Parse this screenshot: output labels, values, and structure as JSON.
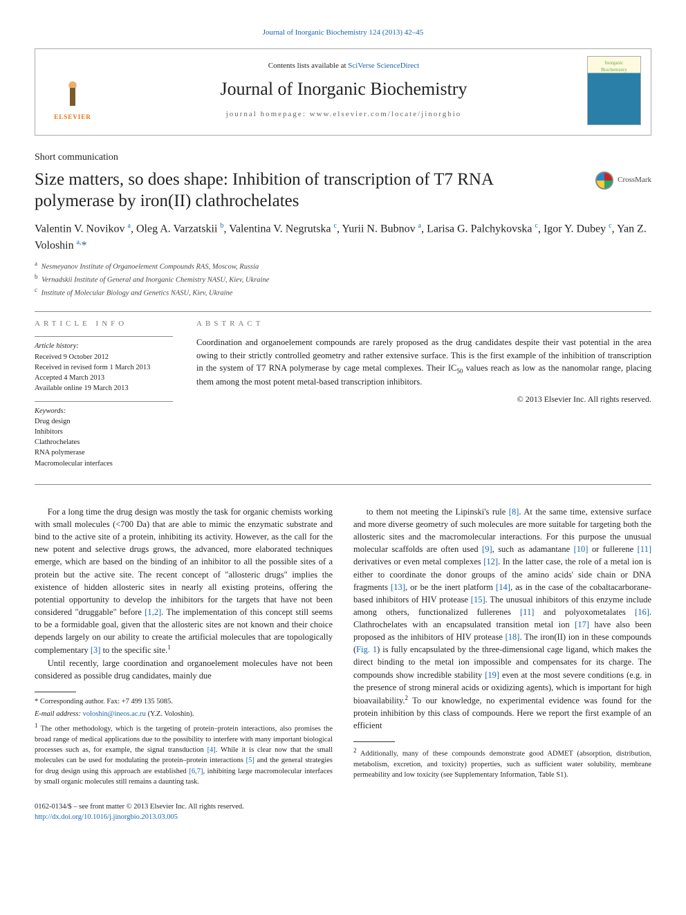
{
  "top_link": {
    "pre": "",
    "text": "Journal of Inorganic Biochemistry 124 (2013) 42–45"
  },
  "header": {
    "contents_pre": "Contents lists available at ",
    "contents_link": "SciVerse ScienceDirect",
    "journal": "Journal of Inorganic Biochemistry",
    "homepage": "journal homepage: www.elsevier.com/locate/jinorgbio",
    "elsevier": "ELSEVIER",
    "cover_top": "Inorganic",
    "cover_bot": "Biochemistry"
  },
  "article": {
    "section": "Short communication",
    "title": "Size matters, so does shape: Inhibition of transcription of T7 RNA polymerase by iron(II) clathrochelates",
    "crossmark": "CrossMark",
    "authors_html": "Valentin V. Novikov <sup>a</sup>, Oleg A. Varzatskii <sup>b</sup>, Valentina V. Negrutska <sup>c</sup>, Yurii N. Bubnov <sup>a</sup>, Larisa G. Palchykovska <sup>c</sup>, Igor Y. Dubey <sup>c</sup>, Yan Z. Voloshin <sup>a,</sup><span class='corr'>*</span>",
    "affiliations": [
      {
        "sup": "a",
        "text": "Nesmeyanov Institute of Organoelement Compounds RAS, Moscow, Russia"
      },
      {
        "sup": "b",
        "text": "Vernadskii Institute of General and Inorganic Chemistry NASU, Kiev, Ukraine"
      },
      {
        "sup": "c",
        "text": "Institute of Molecular Biology and Genetics NASU, Kiev, Ukraine"
      }
    ]
  },
  "info": {
    "head": "ARTICLE INFO",
    "history_lbl": "Article history:",
    "history": [
      "Received 9 October 2012",
      "Received in revised form 1 March 2013",
      "Accepted 4 March 2013",
      "Available online 19 March 2013"
    ],
    "kw_lbl": "Keywords:",
    "keywords": [
      "Drug design",
      "Inhibitors",
      "Clathrochelates",
      "RNA polymerase",
      "Macromolecular interfaces"
    ]
  },
  "abstract": {
    "head": "ABSTRACT",
    "text": "Coordination and organoelement compounds are rarely proposed as the drug candidates despite their vast potential in the area owing to their strictly controlled geometry and rather extensive surface. This is the first example of the inhibition of transcription in the system of T7 RNA polymerase by cage metal complexes. Their IC50 values reach as low as the nanomolar range, placing them among the most potent metal-based transcription inhibitors.",
    "copyright": "© 2013 Elsevier Inc. All rights reserved."
  },
  "body": {
    "p1": "For a long time the drug design was mostly the task for organic chemists working with small molecules (<700 Da) that are able to mimic the enzymatic substrate and bind to the active site of a protein, inhibiting its activity. However, as the call for the new potent and selective drugs grows, the advanced, more elaborated techniques emerge, which are based on the binding of an inhibitor to all the possible sites of a protein but the active site. The recent concept of \"allosteric drugs\" implies the existence of hidden allosteric sites in nearly all existing proteins, offering the potential opportunity to develop the inhibitors for the targets that have not been considered \"druggable\" before ",
    "p1_ref1": "[1,2]",
    "p1b": ". The implementation of this concept still seems to be a formidable goal, given that the allosteric sites are not known and their choice depends largely on our ability to create the artificial molecules that are topologically complementary ",
    "p1_ref2": "[3]",
    "p1c": " to the specific site.",
    "p1_fn": "1",
    "p2": "Until recently, large coordination and organoelement molecules have not been considered as possible drug candidates, mainly due",
    "p3": "to them not meeting the Lipinski's rule ",
    "p3_ref1": "[8]",
    "p3b": ". At the same time, extensive surface and more diverse geometry of such molecules are more suitable for targeting both the allosteric sites and the macromolecular interactions. For this purpose the unusual molecular scaffolds are often used ",
    "p3_ref2": "[9]",
    "p3c": ", such as adamantane ",
    "p3_ref3": "[10]",
    "p3d": " or fullerene ",
    "p3_ref4": "[11]",
    "p3e": " derivatives or even metal complexes ",
    "p3_ref5": "[12]",
    "p3f": ". In the latter case, the role of a metal ion is either to coordinate the donor groups of the amino acids' side chain or DNA fragments ",
    "p3_ref6": "[13]",
    "p3g": ", or be the inert platform ",
    "p3_ref7": "[14]",
    "p3h": ", as in the case of the cobaltacarborane-based inhibitors of HIV protease ",
    "p3_ref8": "[15]",
    "p3i": ". The unusual inhibitors of this enzyme include among others, functionalized fullerenes ",
    "p3_ref9": "[11]",
    "p3j": " and polyoxometalates ",
    "p3_ref10": "[16]",
    "p3k": ". Clathrochelates with an encapsulated transition metal ion ",
    "p3_ref11": "[17]",
    "p3l": " have also been proposed as the inhibitors of HIV protease ",
    "p3_ref12": "[18]",
    "p3m": ". The iron(II) ion in these compounds (",
    "p3_fig": "Fig. 1",
    "p3n": ") is fully encapsulated by the three-dimensional cage ligand, which makes the direct binding to the metal ion impossible and compensates for its charge. The compounds show incredible stability ",
    "p3_ref13": "[19]",
    "p3o": " even at the most severe conditions (e.g. in the presence of strong mineral acids or oxidizing agents), which is important for high bioavailability.",
    "p3_fn": "2",
    "p3p": " To our knowledge, no experimental evidence was found for the protein inhibition by this class of compounds. Here we report the first example of an efficient"
  },
  "footnotes_left": {
    "corr": "* Corresponding author. Fax: +7 499 135 5085.",
    "email_lbl": "E-mail address: ",
    "email": "voloshin@ineos.ac.ru",
    "email_post": " (Y.Z. Voloshin).",
    "fn1_mark": "1",
    "fn1a": " The other methodology, which is the targeting of protein–protein interactions, also promises the broad range of medical applications due to the possibility to interfere with many important biological processes such as, for example, the signal transduction ",
    "fn1_ref1": "[4]",
    "fn1b": ". While it is clear now that the small molecules can be used for modulating the protein–protein interactions ",
    "fn1_ref2": "[5]",
    "fn1c": " and the general strategies for drug design using this approach are established ",
    "fn1_ref3": "[6,7]",
    "fn1d": ", inhibiting large macromolecular interfaces by small organic molecules still remains a daunting task."
  },
  "footnotes_right": {
    "fn2_mark": "2",
    "fn2": " Additionally, many of these compounds demonstrate good ADMET (absorption, distribution, metabolism, excretion, and toxicity) properties, such as sufficient water solubility, membrane permeability and low toxicity (see Supplementary Information, Table S1)."
  },
  "footer": {
    "issn": "0162-0134/$ – see front matter © 2013 Elsevier Inc. All rights reserved.",
    "doi": "http://dx.doi.org/10.1016/j.jinorgbio.2013.03.005"
  }
}
